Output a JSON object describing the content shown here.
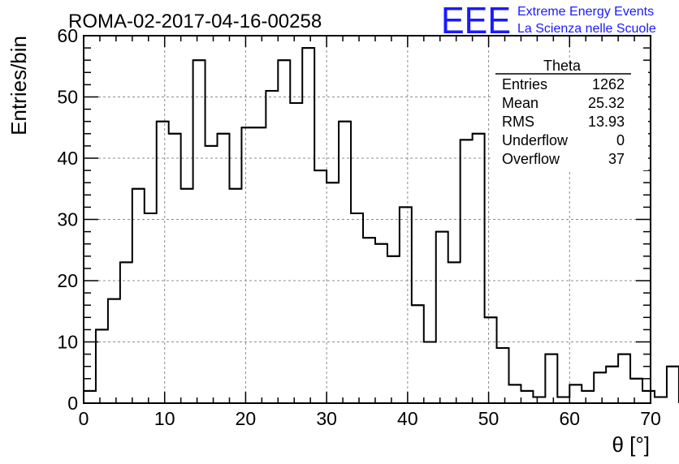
{
  "chart_data": {
    "type": "bar",
    "title": "ROMA-02-2017-04-16-00258",
    "xlabel": "θ [°]",
    "ylabel": "Entries/bin",
    "xlim": [
      0,
      70
    ],
    "ylim": [
      0,
      60
    ],
    "x_ticks": [
      "0",
      "10",
      "20",
      "30",
      "40",
      "50",
      "60",
      "70"
    ],
    "y_ticks": [
      "0",
      "10",
      "20",
      "30",
      "40",
      "50",
      "60"
    ],
    "grid": true,
    "bin_width": 1.5,
    "bins_start": 0,
    "values": [
      2,
      12,
      17,
      23,
      35,
      31,
      46,
      44,
      35,
      56,
      42,
      44,
      35,
      45,
      45,
      51,
      56,
      49,
      58,
      38,
      36,
      46,
      31,
      27,
      26,
      24,
      32,
      16,
      10,
      28,
      23,
      43,
      44,
      14,
      9,
      3,
      2,
      1,
      8,
      1,
      3,
      2,
      5,
      6,
      8,
      4,
      2,
      1,
      6
    ]
  },
  "stats_box": {
    "title": "Theta",
    "rows": [
      {
        "label": "Entries",
        "value": "1262"
      },
      {
        "label": "Mean",
        "value": "25.32"
      },
      {
        "label": "RMS",
        "value": "13.93"
      },
      {
        "label": "Underflow",
        "value": "0"
      },
      {
        "label": "Overflow",
        "value": "37"
      }
    ]
  },
  "logo": {
    "mark": "EEE",
    "line1": "Extreme Energy Events",
    "line2": "La Scienza nelle Scuole",
    "color": "#1a1aff"
  }
}
